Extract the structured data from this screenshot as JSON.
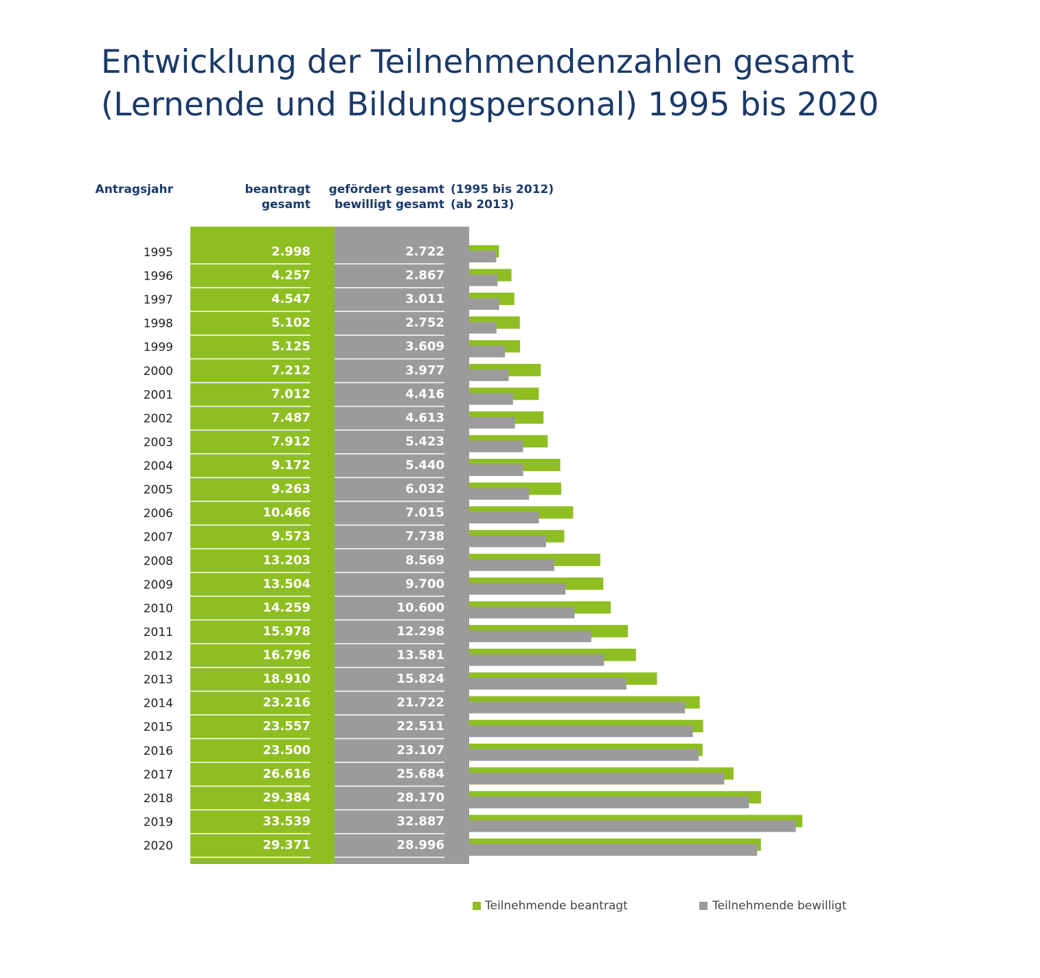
{
  "chart_data": {
    "type": "bar",
    "orientation": "horizontal",
    "title_lines": [
      "Entwicklung der Teilnehmendenzahlen gesamt",
      "(Lernende und Bildungspersonal) 1995 bis 2020"
    ],
    "headers": {
      "year": "Antragsjahr",
      "requested": [
        "beantragt",
        "gesamt"
      ],
      "granted": [
        "gefördert gesamt",
        "bewilligt gesamt"
      ],
      "granted_note": [
        "(1995 bis 2012)",
        "(ab 2013)"
      ]
    },
    "categories": [
      "1995",
      "1996",
      "1997",
      "1998",
      "1999",
      "2000",
      "2001",
      "2002",
      "2003",
      "2004",
      "2005",
      "2006",
      "2007",
      "2008",
      "2009",
      "2010",
      "2011",
      "2012",
      "2013",
      "2014",
      "2015",
      "2016",
      "2017",
      "2018",
      "2019",
      "2020"
    ],
    "series": [
      {
        "name": "Teilnehmende beantragt",
        "color": "#8fbe22",
        "values": [
          2998,
          4257,
          4547,
          5102,
          5125,
          7212,
          7012,
          7487,
          7912,
          9172,
          9263,
          10466,
          9573,
          13203,
          13504,
          14259,
          15978,
          16796,
          18910,
          23216,
          23557,
          23500,
          26616,
          29384,
          33539,
          29371
        ],
        "value_labels": [
          "2.998",
          "4.257",
          "4.547",
          "5.102",
          "5.125",
          "7.212",
          "7.012",
          "7.487",
          "7.912",
          "9.172",
          "9.263",
          "10.466",
          "9.573",
          "13.203",
          "13.504",
          "14.259",
          "15.978",
          "16.796",
          "18.910",
          "23.216",
          "23.557",
          "23.500",
          "26.616",
          "29.384",
          "33.539",
          "29.371"
        ]
      },
      {
        "name": "Teilnehmende bewilligt",
        "color": "#9b9b9b",
        "values": [
          2722,
          2867,
          3011,
          2752,
          3609,
          3977,
          4416,
          4613,
          5423,
          5440,
          6032,
          7015,
          7738,
          8569,
          9700,
          10600,
          12298,
          13581,
          15824,
          21722,
          22511,
          23107,
          25684,
          28170,
          32887,
          28996
        ],
        "value_labels": [
          "2.722",
          "2.867",
          "3.011",
          "2.752",
          "3.609",
          "3.977",
          "4.416",
          "4.613",
          "5.423",
          "5.440",
          "6.032",
          "7.015",
          "7.738",
          "8.569",
          "9.700",
          "10.600",
          "12.298",
          "13.581",
          "15.824",
          "21.722",
          "22.511",
          "23.107",
          "25.684",
          "28.170",
          "32.887",
          "28.996"
        ]
      }
    ]
  }
}
